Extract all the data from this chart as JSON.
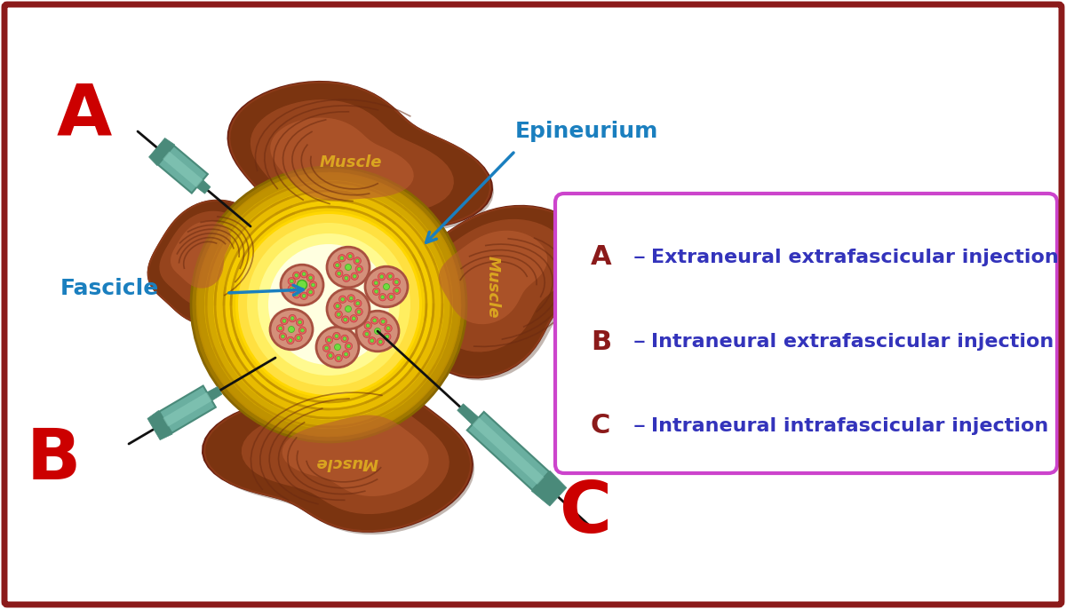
{
  "bg_color": "#ffffff",
  "border_color": "#8B1A1A",
  "border_linewidth": 6,
  "label_A": "A",
  "label_B": "B",
  "label_C": "C",
  "label_A_color": "#CC0000",
  "label_B_color": "#CC0000",
  "label_C_color": "#CC0000",
  "label_Fascicle": "Fascicle",
  "label_Epineurium": "Epineurium",
  "label_color_blue": "#1A7FBF",
  "label_muscle_color": "#DAA520",
  "muscle_dark": "#7B3410",
  "muscle_mid": "#9B4820",
  "muscle_light": "#B85C30",
  "muscle_highlight": "#C87848",
  "muscle_striation": "#6B2A10",
  "muscle_edge": "#8B3A18",
  "epi_outer": "#C89000",
  "epi_mid": "#E0A800",
  "epi_inner": "#F5C000",
  "epi_bright": "#FFD700",
  "epi_center": "#FFEE55",
  "epi_innermost": "#FFFFF0",
  "fascicle_fill": "#D4907A",
  "fascicle_edge": "#A85040",
  "dot_red_fill": "#E86060",
  "dot_red_edge": "#C04040",
  "dot_green_fill": "#70DD40",
  "dot_green_edge": "#40AA20",
  "needle_body": "#6AAFA0",
  "needle_dark": "#4A8A7A",
  "needle_shaft": "#222222",
  "box_border": "#CC44CC",
  "box_bg": "#FFFFFF",
  "legend_letter_color": "#8B1A1A",
  "legend_dash_color": "#3333BB",
  "legend_text_color": "#3333BB",
  "legend_A_text": "Extraneural extrafascicular injection",
  "legend_B_text": "Intraneural extrafascicular injection",
  "legend_C_text": "Intraneural intrafascicular injection"
}
